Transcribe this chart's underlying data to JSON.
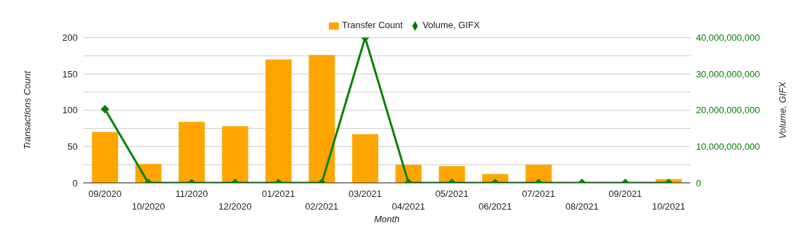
{
  "chart_data": {
    "type": "bar",
    "xlabel": "Month",
    "ylabel": "Transactions Count",
    "y2label": "Volume, GIFX",
    "categories": [
      "09/2020",
      "10/2020",
      "11/2020",
      "12/2020",
      "01/2021",
      "02/2021",
      "03/2021",
      "04/2021",
      "05/2021",
      "06/2021",
      "07/2021",
      "08/2021",
      "09/2021",
      "10/2021"
    ],
    "series": [
      {
        "name": "Transfer Count",
        "color": "#ffa500",
        "values": [
          70,
          26,
          84,
          78,
          170,
          176,
          67,
          25,
          23,
          12,
          25,
          0,
          0,
          5
        ]
      },
      {
        "name": "Volume, GIFX",
        "type": "line",
        "axis": "y2",
        "color": "#008000",
        "values": [
          20300000000,
          0,
          0,
          0,
          0,
          0,
          40000000000,
          0,
          0,
          0,
          0,
          0,
          0,
          0
        ]
      }
    ],
    "ylim": [
      0,
      200
    ],
    "yticks": [
      0,
      {
        "value": 25,
        "label": null
      },
      50,
      {
        "value": 75,
        "label": null
      },
      100,
      {
        "value": 125,
        "label": null
      },
      150,
      {
        "value": 175,
        "label": null
      },
      200
    ],
    "y2lim": [
      0,
      40000000000
    ],
    "y2ticks": [
      {
        "value": 0,
        "label": "0"
      },
      {
        "value": 10000000000,
        "label": "10,000,000,000"
      },
      {
        "value": 20000000000,
        "label": "20,000,000,000"
      },
      {
        "value": 30000000000,
        "label": "30,000,000,000"
      },
      {
        "value": 40000000000,
        "label": "40,000,000,000"
      }
    ],
    "grid": "y",
    "legend": "top",
    "marker": "diamond",
    "line_style": "solid"
  }
}
